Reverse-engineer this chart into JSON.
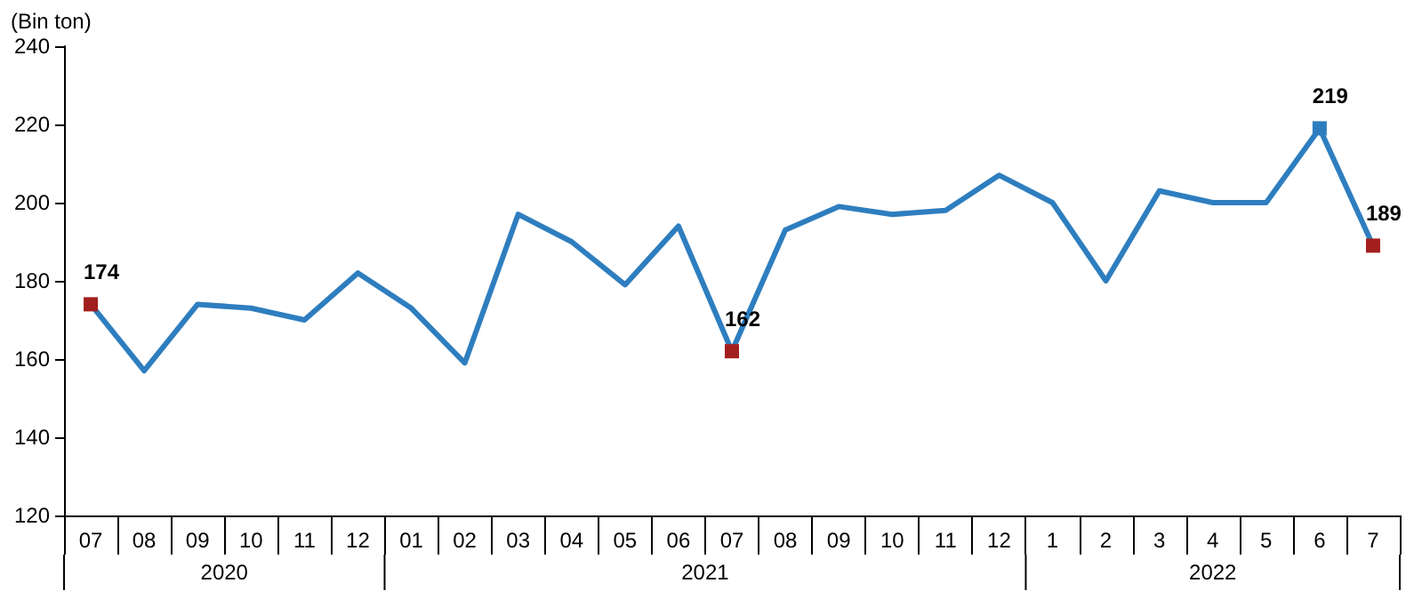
{
  "chart_data": {
    "type": "line",
    "ylabel": "(Bin ton)",
    "categories": [
      "07",
      "08",
      "09",
      "10",
      "11",
      "12",
      "01",
      "02",
      "03",
      "04",
      "05",
      "06",
      "07",
      "08",
      "09",
      "10",
      "11",
      "12",
      "1",
      "2",
      "3",
      "4",
      "5",
      "6",
      "7"
    ],
    "annotations": [
      "2020",
      "2021",
      "2022"
    ],
    "series": [
      {
        "color": "#2e7ebf",
        "values": [
          174,
          157,
          174,
          173,
          170,
          182,
          173,
          159,
          197,
          190,
          179,
          194,
          162,
          193,
          199,
          197,
          198,
          207,
          200,
          180,
          203,
          200,
          200,
          219,
          189
        ],
        "value_labels": [
          "174",
          null,
          null,
          null,
          null,
          null,
          null,
          null,
          null,
          null,
          null,
          null,
          "162",
          null,
          null,
          null,
          null,
          null,
          null,
          null,
          null,
          null,
          null,
          "219",
          "189"
        ],
        "colors": [
          "#a31f1f",
          null,
          null,
          null,
          null,
          null,
          null,
          null,
          null,
          null,
          null,
          null,
          "#a31f1f",
          null,
          null,
          null,
          null,
          null,
          null,
          null,
          null,
          null,
          null,
          "#2e7ebf",
          "#a31f1f"
        ]
      }
    ],
    "ylim": [
      120,
      240
    ],
    "yticks": [
      120,
      140,
      160,
      180,
      200,
      220,
      240
    ],
    "grid": false,
    "line_style": "solid"
  }
}
